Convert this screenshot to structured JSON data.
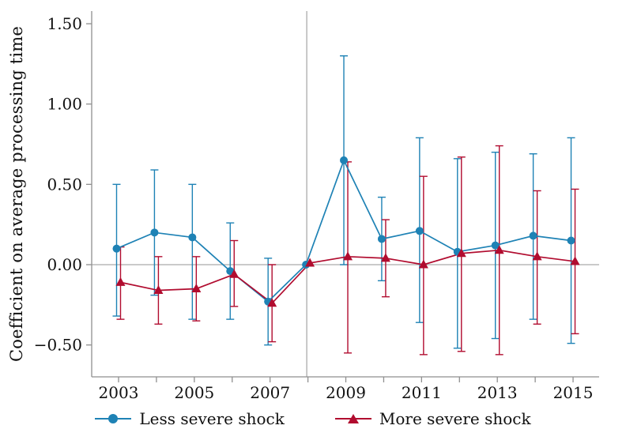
{
  "chart_data": {
    "type": "line",
    "title": "",
    "xlabel": "",
    "ylabel": "Coefficient on average processing time",
    "x": [
      2003,
      2004,
      2005,
      2006,
      2007,
      2008,
      2009,
      2010,
      2011,
      2012,
      2013,
      2014,
      2015
    ],
    "x_label_years": [
      2003,
      2005,
      2007,
      2009,
      2011,
      2013,
      2015
    ],
    "yticks": [
      {
        "value": -0.5,
        "label": "−0.50"
      },
      {
        "value": 0.0,
        "label": "0.00"
      },
      {
        "value": 0.5,
        "label": "0.50"
      },
      {
        "value": 1.0,
        "label": "1.00"
      },
      {
        "value": 1.5,
        "label": "1.50"
      }
    ],
    "ylim": [
      -0.7,
      1.58
    ],
    "xlim": [
      2002.3,
      2015.7
    ],
    "reference_vline_x": 2008,
    "reference_hline_y": 0,
    "grid": false,
    "legend_position": "bottom-center",
    "axis_color": "#8f8f8f",
    "ref_line_color": "#ababab",
    "text_color": "#111111",
    "series": [
      {
        "name": "Less severe shock",
        "marker": "circle",
        "color": "#1e82b5",
        "values": [
          0.1,
          0.2,
          0.17,
          -0.04,
          -0.23,
          0.0,
          0.65,
          0.16,
          0.21,
          0.08,
          0.12,
          0.18,
          0.15
        ],
        "ci_low": [
          -0.32,
          -0.19,
          -0.34,
          -0.34,
          -0.5,
          null,
          0.0,
          -0.1,
          -0.36,
          -0.52,
          -0.46,
          -0.34,
          -0.49
        ],
        "ci_high": [
          0.5,
          0.59,
          0.5,
          0.26,
          0.04,
          null,
          1.3,
          0.42,
          0.79,
          0.66,
          0.7,
          0.69,
          0.79
        ]
      },
      {
        "name": "More severe shock",
        "marker": "triangle",
        "color": "#b10c2f",
        "values": [
          -0.11,
          -0.16,
          -0.15,
          -0.06,
          -0.24,
          0.01,
          0.05,
          0.04,
          0.0,
          0.07,
          0.09,
          0.05,
          0.02
        ],
        "ci_low": [
          -0.34,
          -0.37,
          -0.35,
          -0.26,
          -0.48,
          null,
          -0.55,
          -0.2,
          -0.56,
          -0.54,
          -0.56,
          -0.37,
          -0.43
        ],
        "ci_high": [
          0.11,
          0.05,
          0.05,
          0.15,
          0.0,
          null,
          0.64,
          0.28,
          0.55,
          0.67,
          0.74,
          0.46,
          0.47
        ]
      }
    ]
  }
}
